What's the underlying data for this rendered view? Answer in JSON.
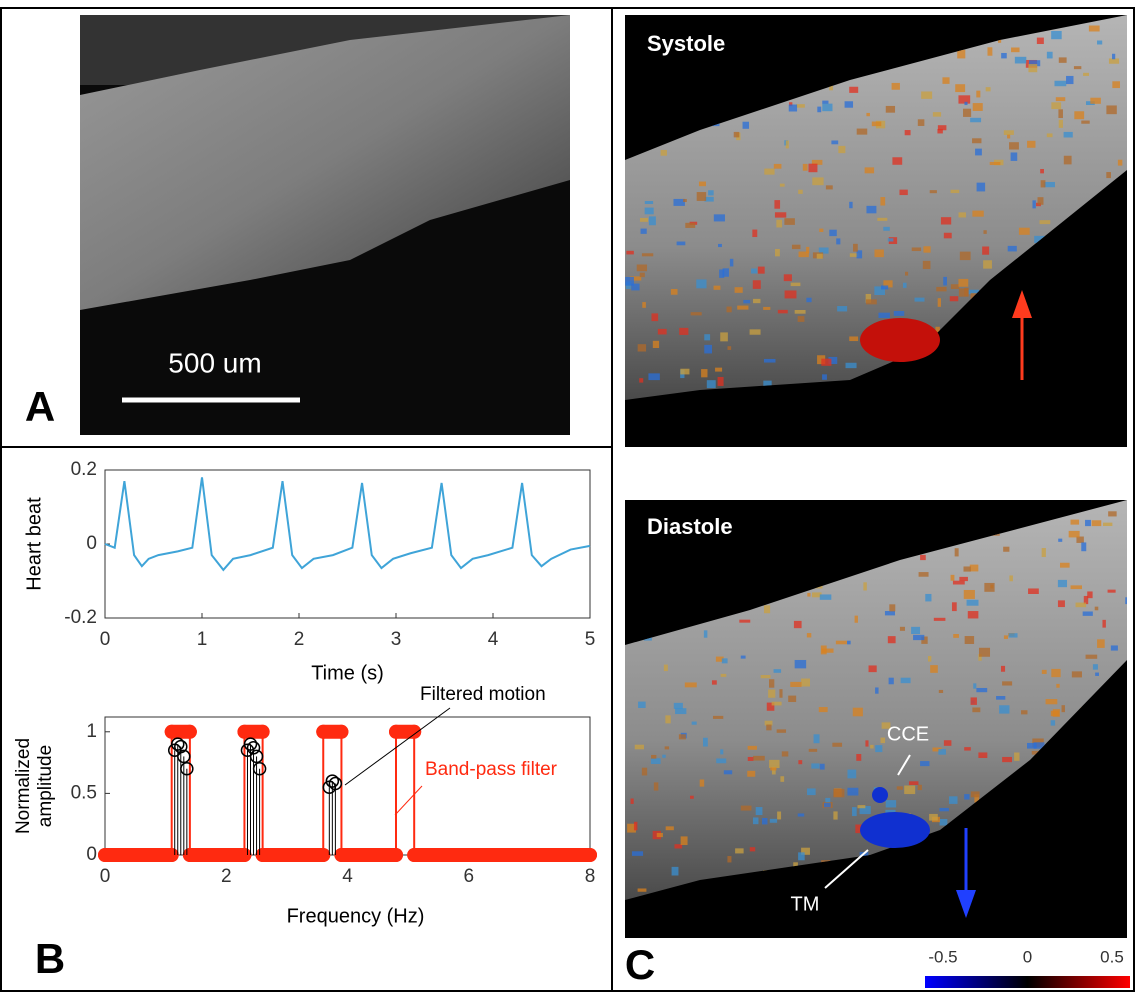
{
  "panel_labels": {
    "a": "A",
    "b": "B",
    "c": "C"
  },
  "image_a": {
    "scale_bar": "500 um"
  },
  "image_c": {
    "systole": "Systole",
    "diastole": "Diastole",
    "cce": "CCE",
    "tm": "TM"
  },
  "chart_data": [
    {
      "type": "line",
      "xlabel": "Time (s)",
      "ylabel": "Heart beat",
      "xlim": [
        0,
        5
      ],
      "xticks": [
        0,
        1,
        2,
        3,
        4,
        5
      ],
      "ylim": [
        -0.2,
        0.2
      ],
      "yticks": [
        -0.2,
        0,
        0.2
      ],
      "series": [
        {
          "color": "#3fa4d8",
          "x": [
            0,
            0.1,
            0.2,
            0.3,
            0.38,
            0.45,
            0.55,
            0.75,
            0.9,
            1.0,
            1.1,
            1.22,
            1.32,
            1.5,
            1.73,
            1.83,
            1.93,
            2.03,
            2.15,
            2.35,
            2.55,
            2.65,
            2.75,
            2.85,
            2.97,
            3.15,
            3.37,
            3.47,
            3.57,
            3.67,
            3.79,
            3.95,
            4.2,
            4.3,
            4.4,
            4.5,
            4.6,
            4.8,
            5.0
          ],
          "values": [
            0,
            -0.01,
            0.17,
            -0.03,
            -0.06,
            -0.04,
            -0.03,
            -0.02,
            -0.01,
            0.18,
            -0.03,
            -0.07,
            -0.04,
            -0.03,
            -0.01,
            0.17,
            -0.03,
            -0.065,
            -0.04,
            -0.03,
            -0.01,
            0.165,
            -0.03,
            -0.065,
            -0.04,
            -0.025,
            -0.01,
            0.165,
            -0.03,
            -0.065,
            -0.04,
            -0.03,
            -0.01,
            0.165,
            -0.03,
            -0.06,
            -0.04,
            -0.015,
            -0.005
          ]
        }
      ]
    },
    {
      "type": "stem",
      "xlabel": "Frequency (Hz)",
      "ylabel": [
        "Normalized",
        "amplitude"
      ],
      "xlim": [
        0,
        8
      ],
      "xticks": [
        0,
        2,
        4,
        6,
        8
      ],
      "ylim": [
        0,
        1.12
      ],
      "yticks": [
        0,
        0.5,
        1
      ],
      "series": [
        {
          "name": "Band-pass filter",
          "color": "#ff2a10",
          "style": "line",
          "x": [
            0,
            1.1,
            1.1,
            1.4,
            1.4,
            2.3,
            2.3,
            2.6,
            2.6,
            3.6,
            3.6,
            3.9,
            3.9,
            4.8,
            4.8,
            5.1,
            5.1,
            8
          ],
          "values": [
            0,
            0,
            1,
            1,
            0,
            0,
            1,
            1,
            0,
            0,
            1,
            1,
            0,
            0,
            1,
            1,
            0,
            0
          ]
        },
        {
          "name": "Filtered motion",
          "color": "#000000",
          "style": "stem",
          "x": [
            1.15,
            1.2,
            1.25,
            1.3,
            1.35,
            2.35,
            2.4,
            2.45,
            2.5,
            2.55,
            3.7,
            3.75,
            3.8
          ],
          "values": [
            0.85,
            0.9,
            0.88,
            0.8,
            0.7,
            0.85,
            0.9,
            0.87,
            0.8,
            0.7,
            0.55,
            0.6,
            0.58
          ]
        }
      ]
    },
    {
      "type": "colorbar",
      "xlim": [
        -0.5,
        0.5
      ],
      "xticks": [
        -0.5,
        0,
        0.5
      ],
      "colors": [
        "#0000ff",
        "#000000",
        "#ff0000"
      ]
    }
  ]
}
